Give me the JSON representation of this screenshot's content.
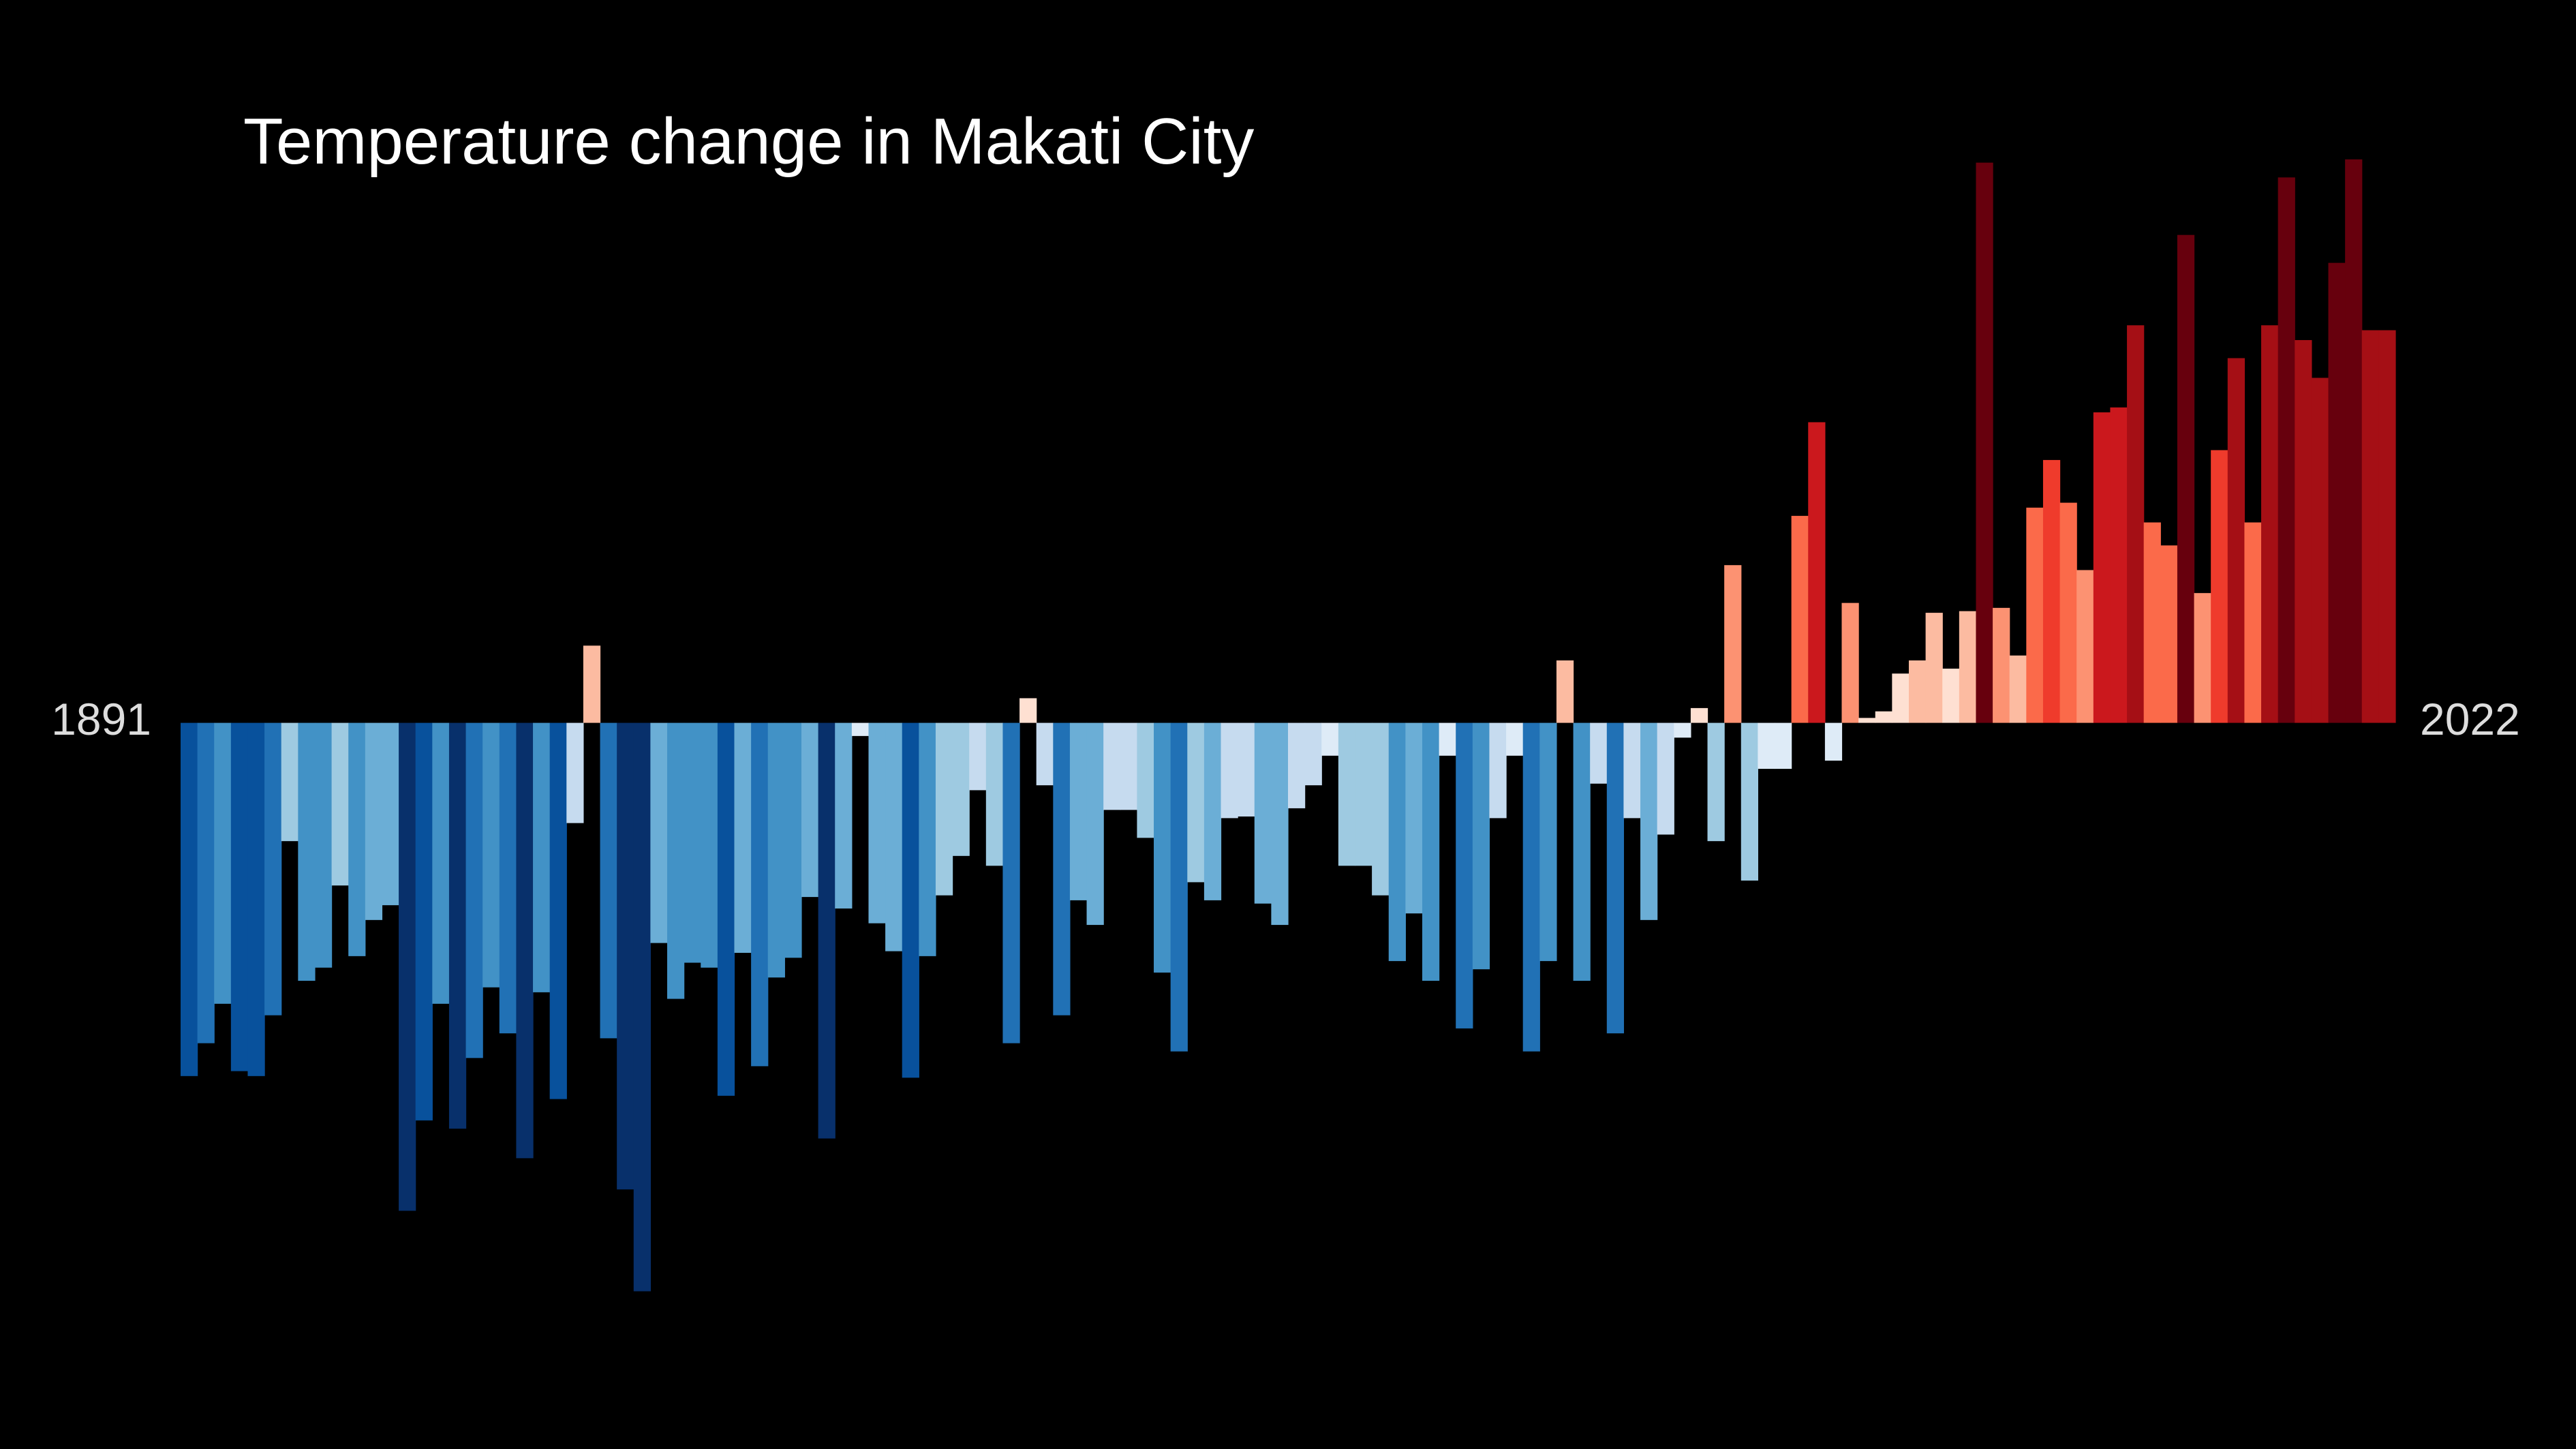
{
  "chart_data": {
    "type": "bar",
    "title": "Temperature change in Makati City",
    "categories": [
      "1891",
      null,
      null,
      null,
      null,
      null,
      null,
      null,
      null,
      null,
      null,
      null,
      null,
      null,
      null,
      null,
      null,
      null,
      null,
      null,
      null,
      null,
      null,
      null,
      null,
      null,
      null,
      null,
      null,
      null,
      null,
      null,
      null,
      null,
      null,
      null,
      null,
      null,
      null,
      null,
      null,
      null,
      null,
      null,
      null,
      null,
      null,
      null,
      null,
      null,
      null,
      null,
      null,
      null,
      null,
      null,
      null,
      null,
      null,
      null,
      null,
      null,
      null,
      null,
      null,
      null,
      null,
      null,
      null,
      null,
      null,
      null,
      null,
      null,
      null,
      null,
      null,
      null,
      null,
      null,
      null,
      null,
      null,
      null,
      null,
      null,
      null,
      null,
      null,
      null,
      null,
      null,
      null,
      null,
      null,
      null,
      null,
      null,
      null,
      null,
      null,
      null,
      null,
      null,
      null,
      null,
      null,
      null,
      null,
      null,
      null,
      null,
      null,
      null,
      null,
      null,
      null,
      null,
      null,
      null,
      null,
      null,
      null,
      null,
      null,
      null,
      null,
      null,
      null,
      null,
      null,
      "2022"
    ],
    "values": [
      -2.15,
      -1.95,
      -1.71,
      -2.12,
      -2.15,
      -1.78,
      -0.72,
      -1.57,
      -1.49,
      -0.99,
      -1.42,
      -1.2,
      -1.11,
      -2.97,
      -2.42,
      -1.71,
      -2.47,
      -2.04,
      -1.61,
      -1.89,
      -2.65,
      -1.64,
      -2.29,
      -0.61,
      0.47,
      -1.92,
      -2.84,
      -3.46,
      -1.34,
      -1.68,
      -1.46,
      -1.49,
      -2.27,
      -1.4,
      -2.09,
      -1.55,
      -1.43,
      -1.06,
      -2.53,
      -1.13,
      -0.08,
      -1.22,
      -1.39,
      -2.16,
      -1.42,
      -1.05,
      -0.81,
      -0.41,
      -0.87,
      -1.95,
      0.15,
      -0.38,
      -1.78,
      -1.08,
      -1.23,
      -0.53,
      -0.53,
      -0.7,
      -1.52,
      -2.0,
      -0.97,
      -1.08,
      -0.58,
      -0.57,
      -1.1,
      -1.23,
      -0.52,
      -0.38,
      -0.2,
      -0.87,
      -0.87,
      -1.05,
      -1.45,
      -1.16,
      -1.57,
      -0.2,
      -1.86,
      -1.5,
      -0.58,
      -0.2,
      -2.0,
      -1.45,
      0.38,
      -1.57,
      -0.37,
      -1.89,
      -0.58,
      -1.2,
      -0.68,
      -0.09,
      0.09,
      -0.72,
      0.96,
      -0.96,
      -0.28,
      -0.28,
      1.26,
      1.83,
      -0.23,
      0.73,
      0.03,
      0.07,
      0.3,
      0.38,
      0.67,
      0.33,
      0.68,
      3.41,
      0.7,
      0.41,
      1.31,
      1.6,
      1.34,
      0.93,
      1.89,
      1.92,
      2.42,
      1.22,
      1.08,
      2.97,
      0.79,
      1.66,
      2.22,
      1.22,
      2.42,
      3.32,
      2.33,
      2.1,
      2.8,
      3.43,
      2.39,
      2.39
    ],
    "ylim": [
      -4.42,
      4.4
    ],
    "color_scale": [
      "#08306b",
      "#08519c",
      "#2171b5",
      "#4292c6",
      "#6baed6",
      "#9ecae1",
      "#c6dbef",
      "#deebf7",
      "#fee0d2",
      "#fcbba1",
      "#fc9272",
      "#fb6a4a",
      "#ef3b2c",
      "#cb181d",
      "#a50f15",
      "#67000d"
    ],
    "clim": [
      -2.8,
      2.8
    ],
    "background": "#000000"
  }
}
